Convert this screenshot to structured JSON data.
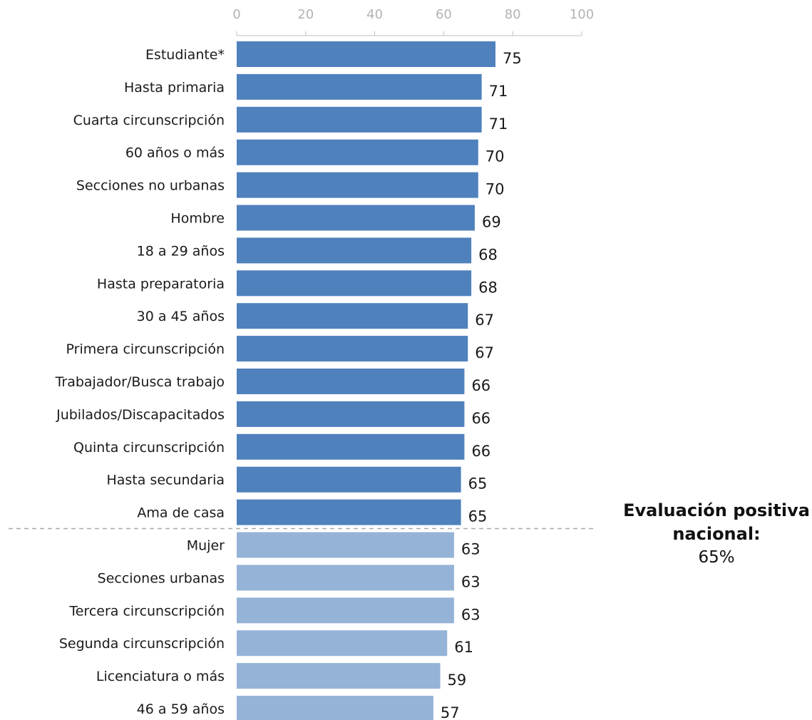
{
  "chart_data": {
    "type": "bar",
    "orientation": "horizontal",
    "xlim": [
      0,
      100
    ],
    "x_ticks": [
      "0",
      "20",
      "40",
      "60",
      "80",
      "100"
    ],
    "grid": false,
    "colors": {
      "above_national": "#4f81bd",
      "below_national": "#95b3d7",
      "axis": "#bfbfbf",
      "divider": "#a6a6a6"
    },
    "categories": [
      "Estudiante*",
      "Hasta primaria",
      "Cuarta circunscripción",
      "60 años o más",
      "Secciones no urbanas",
      "Hombre",
      "18 a 29 años",
      "Hasta preparatoria",
      "30 a 45 años",
      "Primera circunscripción",
      "Trabajador/Busca trabajo",
      "Jubilados/Discapacitados",
      "Quinta circunscripción",
      "Hasta secundaria",
      "Ama de casa",
      "Mujer",
      "Secciones urbanas",
      "Tercera circunscripción",
      "Segunda circunscripción",
      "Licenciatura o más",
      "46 a 59 años"
    ],
    "values": [
      75,
      71,
      71,
      70,
      70,
      69,
      68,
      68,
      67,
      67,
      66,
      66,
      66,
      65,
      65,
      63,
      63,
      63,
      61,
      59,
      57
    ],
    "highlight_count": 15,
    "divider_after_index": 14
  },
  "callout": {
    "line1": "Evaluación positiva",
    "line2": "nacional:",
    "value": "65%"
  }
}
